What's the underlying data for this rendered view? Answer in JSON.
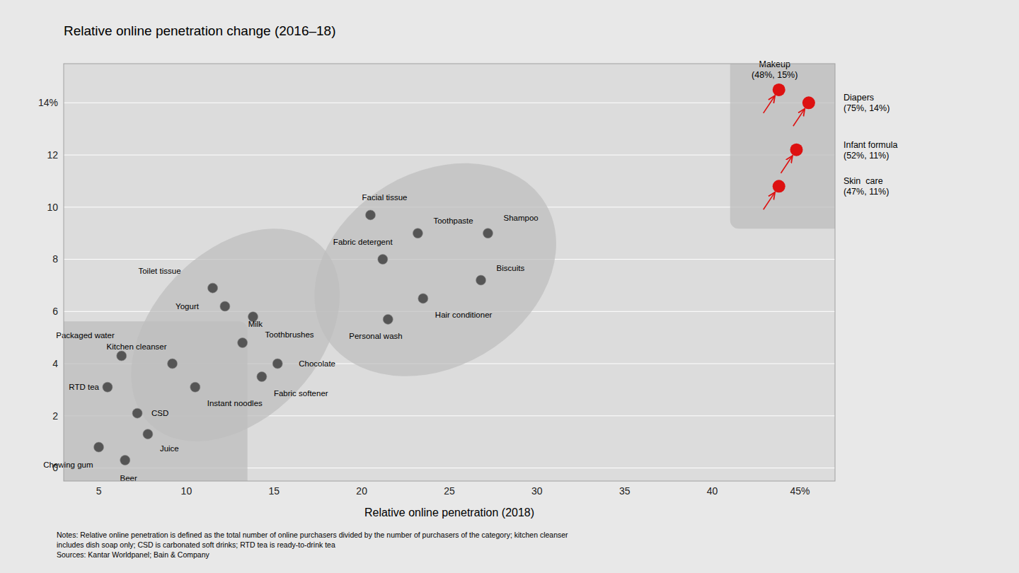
{
  "chart_data": {
    "type": "scatter",
    "title": "Relative online penetration change (2016–18)",
    "x_label": "Relative online penetration (2018)",
    "xlim": [
      3.0,
      47.0
    ],
    "ylim": [
      -0.5,
      15.5
    ],
    "xticks": [
      5,
      10,
      15,
      20,
      25,
      30,
      35,
      40,
      {
        "value": 45,
        "label": "45%"
      }
    ],
    "yticks": [
      0,
      2,
      4,
      6,
      8,
      10,
      12,
      {
        "value": 14,
        "label": "14%"
      }
    ],
    "grid": "y",
    "series": [
      {
        "color": "#555555",
        "x": [
          5.0,
          6.5,
          7.8,
          7.2,
          5.5,
          6.3,
          9.2,
          10.5,
          13.2,
          14.3,
          15.2,
          11.5,
          12.2,
          13.8,
          20.5,
          21.2,
          23.2,
          27.2,
          23.5,
          21.5,
          26.8
        ],
        "y": [
          0.8,
          0.3,
          1.3,
          2.1,
          3.1,
          4.3,
          4.0,
          3.1,
          4.8,
          3.5,
          4.0,
          6.9,
          6.2,
          5.8,
          9.7,
          8.0,
          9.0,
          9.0,
          6.5,
          5.7,
          7.2
        ],
        "labels": [
          "Chewing gum",
          "Beer",
          "Juice",
          "CSD",
          "RTD tea",
          "Packaged water",
          "Kitchen cleanser",
          "Instant noodles",
          "Milk",
          "Fabric softener",
          "Chocolate",
          "Toilet tissue",
          "Yogurt",
          "Toothbrushes",
          "Facial tissue",
          "Fabric detergent",
          "Toothpaste",
          "Shampoo",
          "Hair conditioner",
          "Personal wash",
          "Biscuits"
        ]
      },
      {
        "color": "#dd1111",
        "x": [
          43.8,
          45.5,
          44.8,
          43.8
        ],
        "y": [
          14.5,
          14.0,
          12.2,
          10.8
        ],
        "labels": [
          "Makeup\n(48%, 15%)",
          "Diapers\n(75%, 14%)",
          "Infant formula\n(52%, 11%)",
          "Skin  care\n(47%, 11%)"
        ]
      }
    ],
    "clusters": [
      {
        "shape": "rect",
        "x": 3.0,
        "y": -0.5,
        "w": 10.0,
        "h": 5.8
      },
      {
        "shape": "ellipse",
        "cx": 12.8,
        "cy": 5.1,
        "w": 12.5,
        "h": 7.2,
        "angle": 22
      },
      {
        "shape": "ellipse",
        "cx": 24.2,
        "cy": 7.6,
        "w": 14.0,
        "h": 7.8,
        "angle": 12
      },
      {
        "shape": "rect",
        "x": 41.5,
        "y": 9.5,
        "w": 5.5,
        "h": 6.0
      }
    ],
    "notes": [
      "Notes: Relative online penetration is defined as the total number of online purchasers divided by the number of purchasers of the category; kitchen cleanser",
      "includes dish soap only; CSD is carbonated soft drinks; RTD tea is ready-to-drink tea",
      "Sources: Kantar Worldpanel; Bain & Company"
    ]
  }
}
